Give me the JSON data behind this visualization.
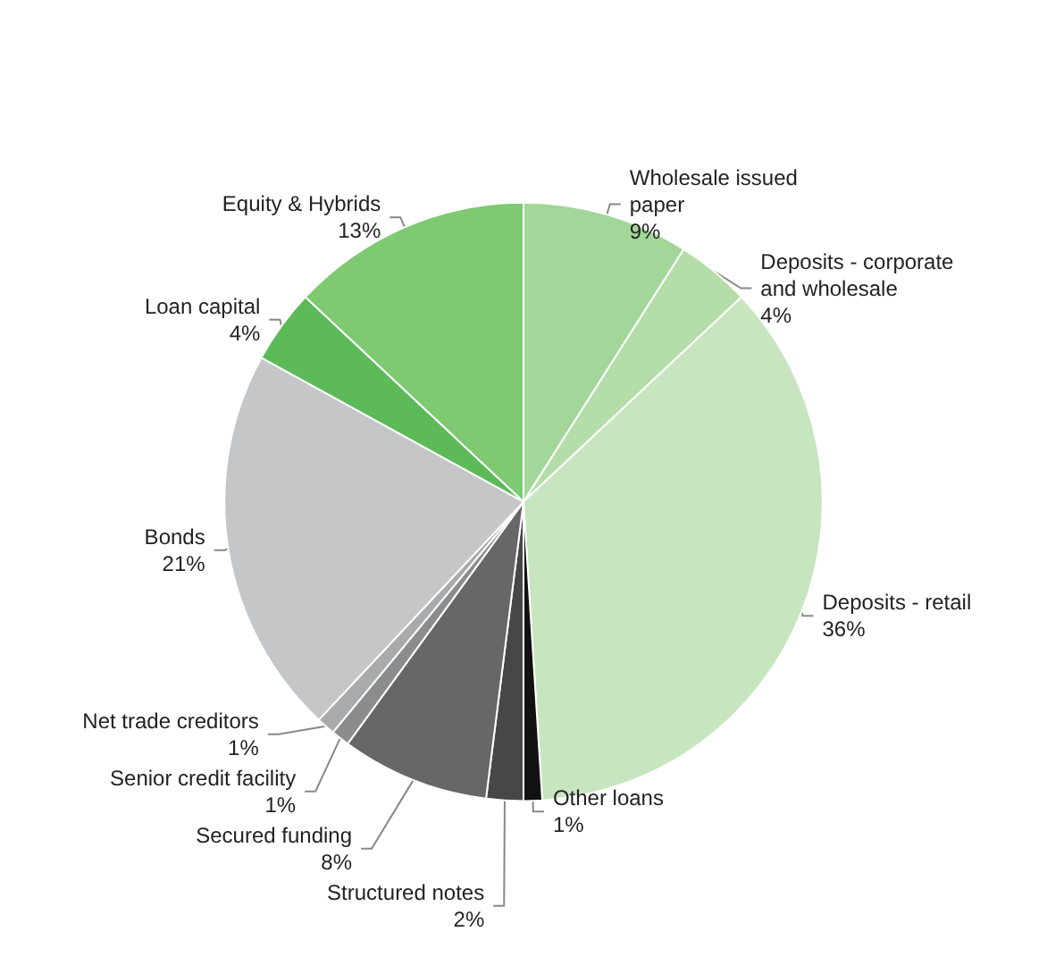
{
  "chart_data": {
    "type": "pie",
    "categories": [
      "Wholesale issued paper",
      "Deposits - corporate and wholesale",
      "Deposits - retail",
      "Other loans",
      "Structured notes",
      "Secured funding",
      "Senior credit facility",
      "Net trade creditors",
      "Bonds",
      "Loan capital",
      "Equity & Hybrids"
    ],
    "values": [
      9,
      4,
      36,
      1,
      2,
      8,
      1,
      1,
      21,
      4,
      13
    ],
    "value_labels": [
      "9%",
      "4%",
      "36%",
      "1%",
      "2%",
      "8%",
      "1%",
      "1%",
      "21%",
      "4%",
      "13%"
    ],
    "colors": [
      "#a3d699",
      "#b4dda9",
      "#c7e5be",
      "#111111",
      "#474747",
      "#676767",
      "#8c8c8c",
      "#a9aaac",
      "#c5c6c8",
      "#5cba59",
      "#7ec972"
    ],
    "legend": false
  }
}
